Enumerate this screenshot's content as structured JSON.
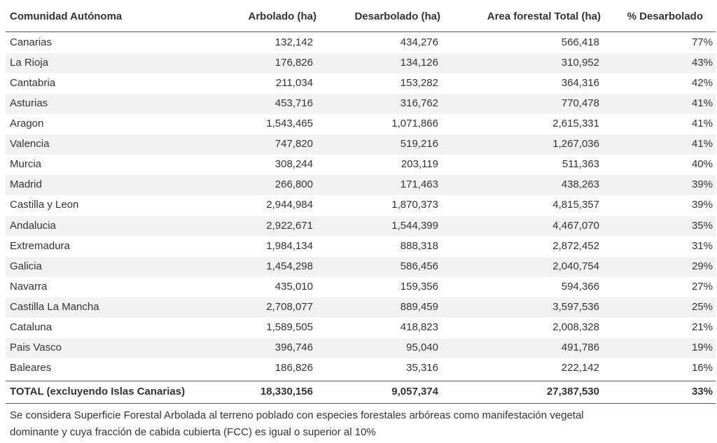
{
  "table": {
    "headers": [
      "Comunidad Autónoma",
      "Arbolado (ha)",
      "Desarbolado (ha)",
      "Area forestal Total (ha)",
      "% Desarbolado"
    ],
    "rows": [
      [
        "Canarias",
        "132,142",
        "434,276",
        "566,418",
        "77%"
      ],
      [
        "La Rioja",
        "176,826",
        "134,126",
        "310,952",
        "43%"
      ],
      [
        "Cantabria",
        "211,034",
        "153,282",
        "364,316",
        "42%"
      ],
      [
        "Asturias",
        "453,716",
        "316,762",
        "770,478",
        "41%"
      ],
      [
        "Aragon",
        "1,543,465",
        "1,071,866",
        "2,615,331",
        "41%"
      ],
      [
        "Valencia",
        "747,820",
        "519,216",
        "1,267,036",
        "41%"
      ],
      [
        "Murcia",
        "308,244",
        "203,119",
        "511,363",
        "40%"
      ],
      [
        "Madrid",
        "266,800",
        "171,463",
        "438,263",
        "39%"
      ],
      [
        "Castilla y Leon",
        "2,944,984",
        "1,870,373",
        "4,815,357",
        "39%"
      ],
      [
        "Andalucia",
        "2,922,671",
        "1,544,399",
        "4,467,070",
        "35%"
      ],
      [
        "Extremadura",
        "1,984,134",
        "888,318",
        "2,872,452",
        "31%"
      ],
      [
        "Galicia",
        "1,454,298",
        "586,456",
        "2,040,754",
        "29%"
      ],
      [
        "Navarra",
        "435,010",
        "159,356",
        "594,366",
        "27%"
      ],
      [
        "Castilla La Mancha",
        "2,708,077",
        "889,459",
        "3,597,536",
        "25%"
      ],
      [
        "Cataluna",
        "1,589,505",
        "418,823",
        "2,008,328",
        "21%"
      ],
      [
        "Pais Vasco",
        "396,746",
        "95,040",
        "491,786",
        "19%"
      ],
      [
        "Baleares",
        "186,826",
        "35,316",
        "222,142",
        "16%"
      ]
    ],
    "total": [
      "TOTAL (excluyendo Islas Canarias)",
      "18,330,156",
      "9,057,374",
      "27,387,530",
      "33%"
    ]
  },
  "footnote": [
    "Se considera Superficie Forestal Arbolada al terreno poblado con especies forestales arbóreas como manifestación vegetal",
    "dominante y cuya fracción de cabida cubierta (FCC) es igual o superior al 10%"
  ]
}
